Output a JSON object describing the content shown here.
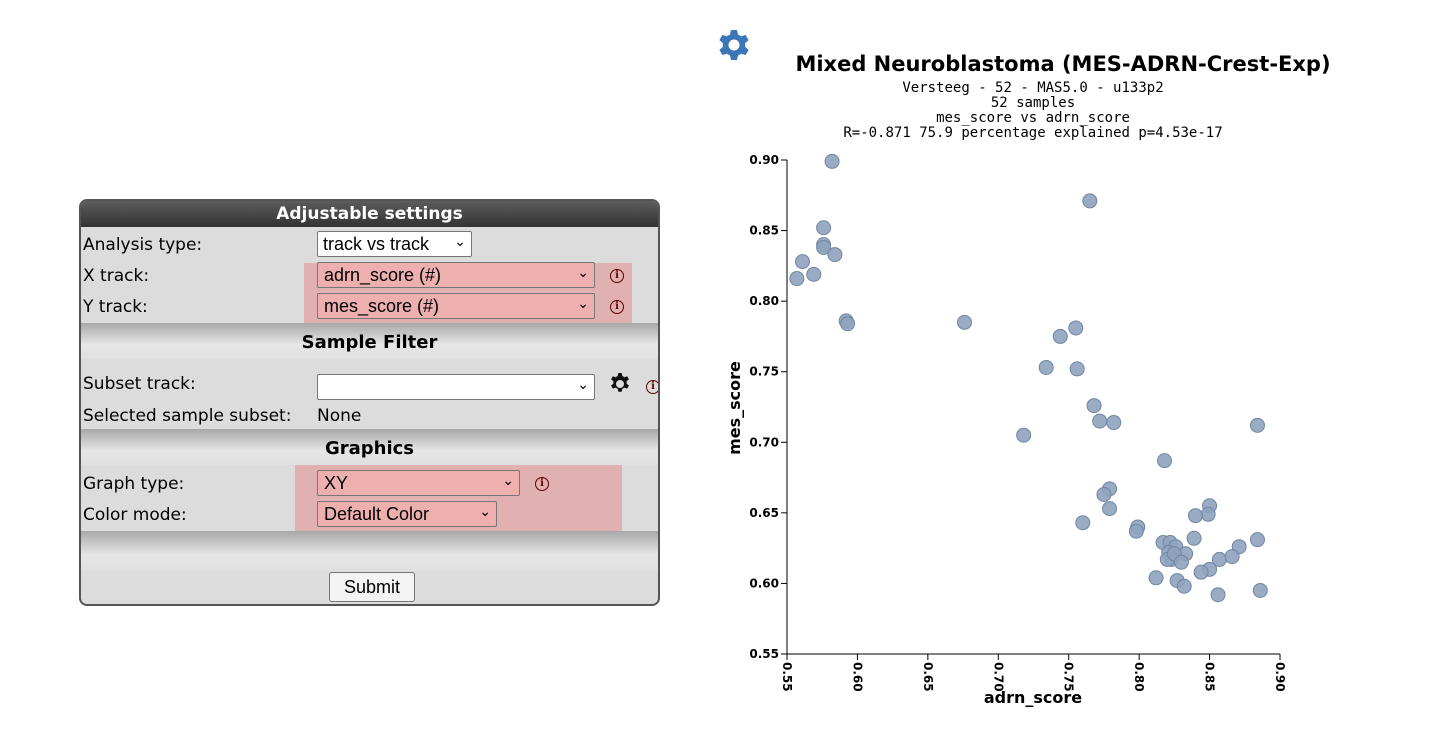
{
  "settings": {
    "title": "Adjustable settings",
    "analysis_type": {
      "label": "Analysis type:",
      "value": "track vs track"
    },
    "x_track": {
      "label": "X track:",
      "value": "adrn_score (#)"
    },
    "y_track": {
      "label": "Y track:",
      "value": "mes_score (#)"
    },
    "sample_filter": {
      "title": "Sample Filter",
      "subset_label": "Subset track:",
      "subset_value": "",
      "selected_label": "Selected sample subset:",
      "selected_value": "None"
    },
    "graphics": {
      "title": "Graphics",
      "graph_type": {
        "label": "Graph type:",
        "value": "XY"
      },
      "color_mode": {
        "label": "Color mode:",
        "value": "Default Color"
      }
    },
    "submit_label": "Submit"
  },
  "icons": {
    "settings": "gear-icon",
    "info": "info-icon"
  },
  "colors": {
    "point": "#8fa3bd",
    "point_stroke": "#6f86a3",
    "settings_gear": "#3a76b8"
  },
  "chart_data": {
    "type": "scatter",
    "title": "Mixed Neuroblastoma (MES-ADRN-Crest-Exp)",
    "subtitle_lines": [
      "Versteeg - 52 - MAS5.0 - u133p2",
      "52 samples",
      "mes_score vs adrn_score",
      "R=-0.871 75.9 percentage explained p=4.53e-17"
    ],
    "xlabel": "adrn_score",
    "ylabel": "mes_score",
    "xlim": [
      0.55,
      0.9
    ],
    "ylim": [
      0.55,
      0.9
    ],
    "xticks": [
      "0.55",
      "0.60",
      "0.65",
      "0.70",
      "0.75",
      "0.80",
      "0.85",
      "0.90"
    ],
    "yticks": [
      "0.55",
      "0.60",
      "0.65",
      "0.70",
      "0.75",
      "0.80",
      "0.85",
      "0.90"
    ],
    "points": [
      [
        0.582,
        0.899
      ],
      [
        0.576,
        0.852
      ],
      [
        0.576,
        0.84
      ],
      [
        0.576,
        0.838
      ],
      [
        0.584,
        0.833
      ],
      [
        0.561,
        0.828
      ],
      [
        0.569,
        0.819
      ],
      [
        0.557,
        0.816
      ],
      [
        0.592,
        0.786
      ],
      [
        0.593,
        0.784
      ],
      [
        0.676,
        0.785
      ],
      [
        0.765,
        0.871
      ],
      [
        0.755,
        0.781
      ],
      [
        0.744,
        0.775
      ],
      [
        0.734,
        0.753
      ],
      [
        0.756,
        0.752
      ],
      [
        0.768,
        0.726
      ],
      [
        0.772,
        0.715
      ],
      [
        0.782,
        0.714
      ],
      [
        0.718,
        0.705
      ],
      [
        0.818,
        0.687
      ],
      [
        0.884,
        0.712
      ],
      [
        0.779,
        0.667
      ],
      [
        0.775,
        0.663
      ],
      [
        0.779,
        0.653
      ],
      [
        0.76,
        0.643
      ],
      [
        0.85,
        0.655
      ],
      [
        0.849,
        0.649
      ],
      [
        0.84,
        0.648
      ],
      [
        0.799,
        0.64
      ],
      [
        0.798,
        0.637
      ],
      [
        0.839,
        0.632
      ],
      [
        0.884,
        0.631
      ],
      [
        0.817,
        0.629
      ],
      [
        0.822,
        0.629
      ],
      [
        0.871,
        0.626
      ],
      [
        0.826,
        0.626
      ],
      [
        0.821,
        0.622
      ],
      [
        0.833,
        0.621
      ],
      [
        0.823,
        0.617
      ],
      [
        0.82,
        0.617
      ],
      [
        0.857,
        0.617
      ],
      [
        0.866,
        0.619
      ],
      [
        0.85,
        0.61
      ],
      [
        0.844,
        0.608
      ],
      [
        0.812,
        0.604
      ],
      [
        0.827,
        0.602
      ],
      [
        0.832,
        0.598
      ],
      [
        0.886,
        0.595
      ],
      [
        0.856,
        0.592
      ],
      [
        0.825,
        0.621
      ],
      [
        0.83,
        0.615
      ]
    ]
  }
}
